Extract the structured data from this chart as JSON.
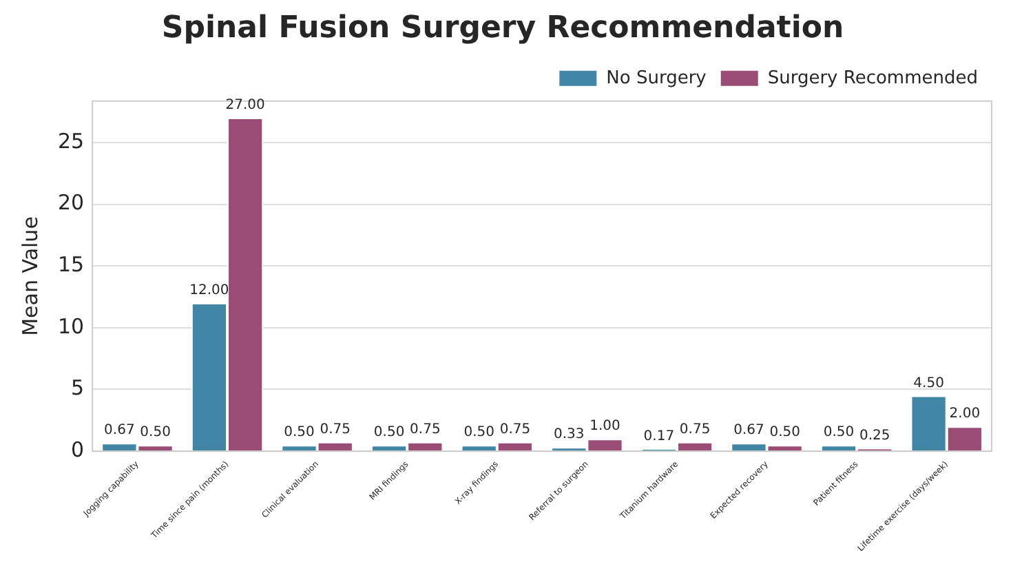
{
  "chart_data": {
    "type": "bar",
    "title": "Spinal Fusion Surgery Recommendation",
    "ylabel": "Mean Value",
    "categories": [
      "Jogging capability",
      "Time since pain (months)",
      "Clinical evaluation",
      "MRI findings",
      "X-ray findings",
      "Referral to surgeon",
      "Titanium hardware",
      "Expected recovery",
      "Patient fitness",
      "Lifetime exercise (days/week)"
    ],
    "series": [
      {
        "name": "No Surgery",
        "color": "#4186a4",
        "values": [
          0.67,
          12,
          0.5,
          0.5,
          0.5,
          0.33,
          0.17,
          0.67,
          0.5,
          4.5
        ],
        "value_labels": [
          "0.67",
          "12.00",
          "0.50",
          "0.50",
          "0.50",
          "0.33",
          "0.17",
          "0.67",
          "0.50",
          "4.50"
        ]
      },
      {
        "name": "Surgery Recommended",
        "color": "#9a4c74",
        "values": [
          0.5,
          27,
          0.75,
          0.75,
          0.75,
          1,
          0.75,
          0.5,
          0.25,
          2
        ],
        "value_labels": [
          "0.50",
          "27.00",
          "0.75",
          "0.75",
          "0.75",
          "1.00",
          "0.75",
          "0.50",
          "0.25",
          "2.00"
        ]
      }
    ],
    "ylim": [
      0,
      28.35
    ],
    "yticks": [
      0,
      5,
      10,
      15,
      20,
      25
    ],
    "grid": "y",
    "legend": "top right"
  }
}
